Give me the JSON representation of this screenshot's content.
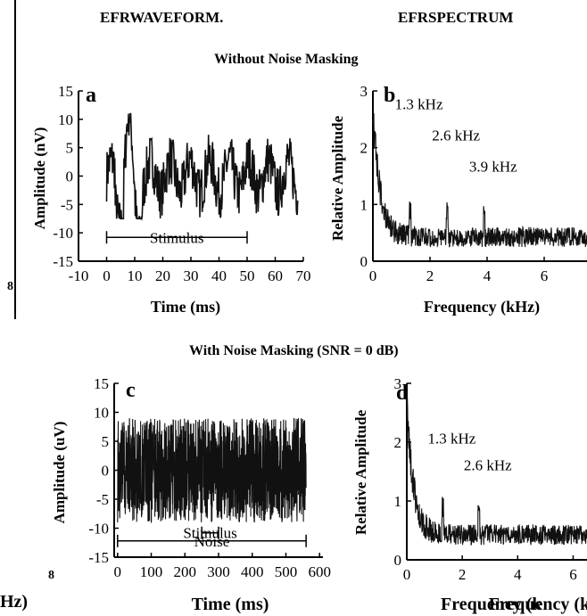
{
  "headers": {
    "left": "EFRWAVEFORM.",
    "right": "EFRSPECTRUM"
  },
  "section_titles": {
    "top": "Without  Noise Masking",
    "bottom": "With  Noise Masking (SNR = 0 dB)"
  },
  "edge_fragments": {
    "top_left": "8",
    "bottom_left_number": "8",
    "bottom_left_unit": "Hz)",
    "bottom_right_unit": "Frequency  (k"
  },
  "chart_data": [
    {
      "panel": "a",
      "type": "line",
      "xlabel": "Time  (ms)",
      "ylabel": "Amplitude  (nV)",
      "xlim": [
        -10,
        70
      ],
      "ylim": [
        -15,
        15
      ],
      "xticks": [
        -10,
        0,
        10,
        20,
        30,
        40,
        50,
        60,
        70
      ],
      "yticks": [
        -15,
        -10,
        -5,
        0,
        5,
        10,
        15
      ],
      "signal_range_ms": [
        0,
        68
      ],
      "annotations": [
        {
          "text": "Stimulus",
          "span": [
            0,
            50
          ]
        }
      ]
    },
    {
      "panel": "b",
      "type": "line",
      "xlabel": "Frequency  (kHz)",
      "ylabel": "Relative  Amplitude",
      "xlim": [
        0,
        7.5
      ],
      "ylim": [
        0,
        3
      ],
      "xticks": [
        0,
        2,
        4,
        6
      ],
      "yticks": [
        0,
        1,
        2,
        3
      ],
      "annotations": [
        {
          "text": "1.3  kHz",
          "x": 1.3
        },
        {
          "text": "2.6  kHz",
          "x": 2.6
        },
        {
          "text": "3.9  kHz",
          "x": 3.9
        }
      ]
    },
    {
      "panel": "c",
      "type": "line",
      "xlabel": "Time  (ms)",
      "ylabel": "Amplitude  (uV)",
      "xlim": [
        -10,
        610
      ],
      "ylim": [
        -15,
        15
      ],
      "xticks": [
        0,
        100,
        200,
        300,
        400,
        500,
        600
      ],
      "yticks": [
        -15,
        -10,
        -5,
        0,
        5,
        10,
        15
      ],
      "signal_range_ms": [
        0,
        560
      ],
      "annotations": [
        {
          "text": "Stimulus",
          "span": [
            250,
            300
          ]
        },
        {
          "text": "Noise",
          "span": [
            0,
            560
          ]
        }
      ]
    },
    {
      "panel": "d",
      "type": "line",
      "xlabel": "Frequency  (kHz)",
      "ylabel": "Relative  Amplitude",
      "xlim": [
        0,
        6.5
      ],
      "ylim": [
        0,
        3
      ],
      "xticks": [
        0,
        2,
        4,
        6
      ],
      "yticks": [
        0,
        1,
        2,
        3
      ],
      "annotations": [
        {
          "text": "1.3  kHz",
          "x": 1.3
        },
        {
          "text": "2.6  kHz",
          "x": 2.6
        }
      ]
    }
  ]
}
